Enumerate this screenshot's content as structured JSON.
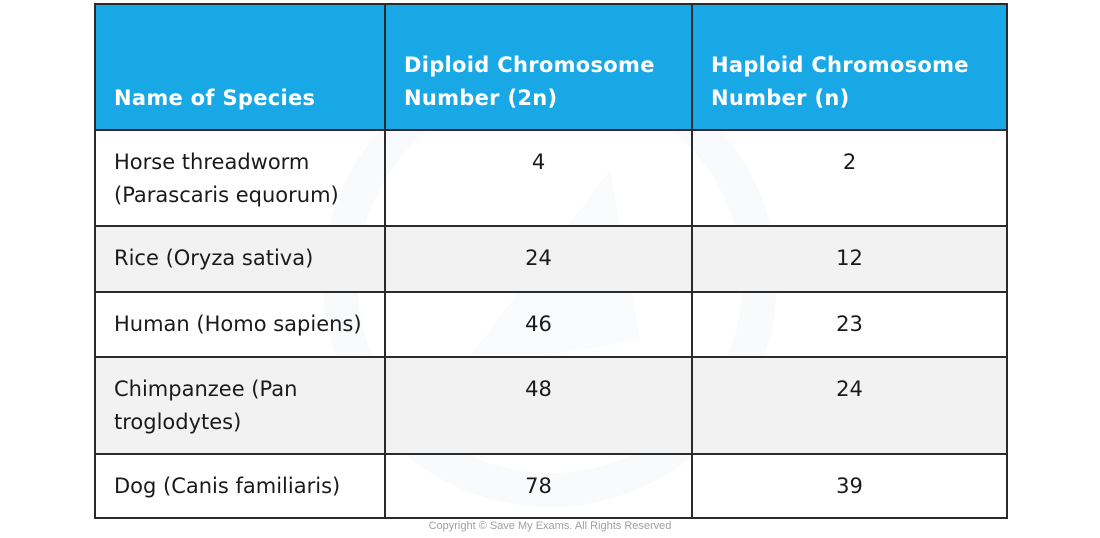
{
  "table": {
    "headers": [
      "Name of Species",
      "Diploid Chromosome Number (2n)",
      "Haploid Chromosome Number (n)"
    ],
    "rows": [
      {
        "species": "Horse threadworm (Parascaris equorum)",
        "diploid": "4",
        "haploid": "2"
      },
      {
        "species": "Rice (Oryza sativa)",
        "diploid": "24",
        "haploid": "12"
      },
      {
        "species": "Human (Homo sapiens)",
        "diploid": "46",
        "haploid": "23"
      },
      {
        "species": "Chimpanzee (Pan troglodytes)",
        "diploid": "48",
        "haploid": "24"
      },
      {
        "species": "Dog (Canis familiaris)",
        "diploid": "78",
        "haploid": "39"
      }
    ]
  },
  "copyright": "Copyright © Save My Exams. All Rights Reserved",
  "colors": {
    "header_bg": "#19a8e6",
    "header_text": "#ffffff",
    "alt_row_bg": "#f2f2f2",
    "border": "#2b2b2b"
  },
  "watermark_icon": "save-my-exams-logo-watermark"
}
